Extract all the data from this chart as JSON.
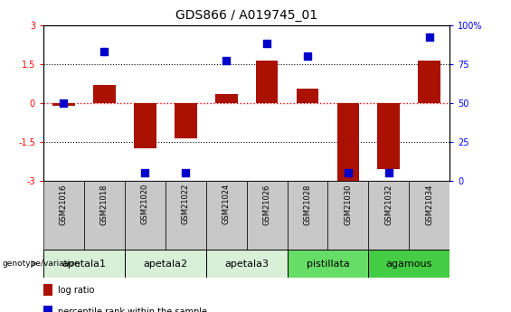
{
  "title": "GDS866 / A019745_01",
  "samples": [
    "GSM21016",
    "GSM21018",
    "GSM21020",
    "GSM21022",
    "GSM21024",
    "GSM21026",
    "GSM21028",
    "GSM21030",
    "GSM21032",
    "GSM21034"
  ],
  "log_ratio": [
    -0.1,
    0.7,
    -1.75,
    -1.35,
    0.35,
    1.62,
    0.55,
    -3.0,
    -2.55,
    1.62
  ],
  "percentile_rank": [
    50,
    83,
    5,
    5,
    77,
    88,
    80,
    5,
    5,
    92
  ],
  "groups": [
    {
      "label": "apetala1",
      "samples": [
        0,
        1
      ],
      "color": "#d8f0d8"
    },
    {
      "label": "apetala2",
      "samples": [
        2,
        3
      ],
      "color": "#d8f0d8"
    },
    {
      "label": "apetala3",
      "samples": [
        4,
        5
      ],
      "color": "#d8f0d8"
    },
    {
      "label": "pistillata",
      "samples": [
        6,
        7
      ],
      "color": "#66dd66"
    },
    {
      "label": "agamous",
      "samples": [
        8,
        9
      ],
      "color": "#44cc44"
    }
  ],
  "ylim": [
    -3,
    3
  ],
  "yticks_left": [
    -3,
    -1.5,
    0,
    1.5,
    3
  ],
  "yticks_right": [
    0,
    25,
    50,
    75,
    100
  ],
  "bar_color": "#aa1100",
  "dot_color": "#0000cc",
  "bar_width": 0.55,
  "dot_size": 35,
  "title_fontsize": 10,
  "tick_fontsize": 7,
  "label_fontsize": 8,
  "sample_box_color": "#c8c8c8",
  "genotype_label": "genotype/variation"
}
